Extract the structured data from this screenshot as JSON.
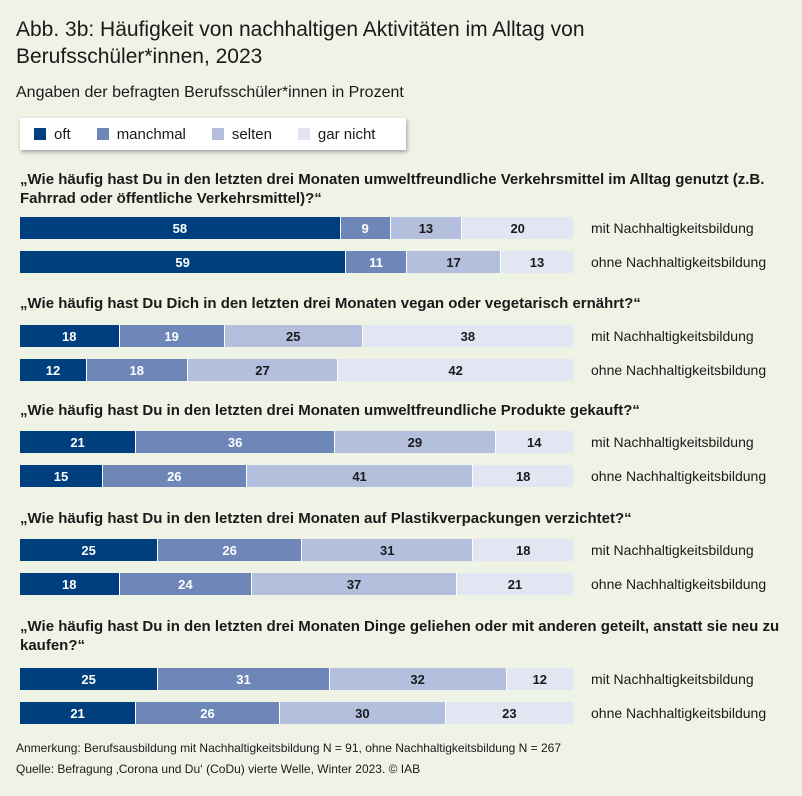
{
  "title": "Abb. 3b: Häufigkeit von nachhaltigen Aktivitäten im Alltag von Berufsschüler*innen, 2023",
  "subtitle": "Angaben der befragten Berufsschüler*innen in Prozent",
  "legend": [
    {
      "label": "oft",
      "key": "oft",
      "color": "#003f7d"
    },
    {
      "label": "manchmal",
      "key": "manchmal",
      "color": "#6f86b9"
    },
    {
      "label": "selten",
      "key": "selten",
      "color": "#b3bfdd"
    },
    {
      "label": "gar nicht",
      "key": "garnicht",
      "color": "#e2e6f2"
    }
  ],
  "chart_data": {
    "type": "bar",
    "orientation": "horizontal",
    "stacked": true,
    "unit": "Prozent",
    "categories_stack": [
      "oft",
      "manchmal",
      "selten",
      "gar nicht"
    ],
    "groups": [
      {
        "question": "„Wie häufig hast Du in den letzten drei Monaten umweltfreundliche Verkehrsmittel im Alltag genutzt (z.B. Fahrrad oder öffentliche Verkehrsmittel)?“",
        "rows": [
          {
            "label": "mit Nachhaltigkeitsbildung",
            "values": [
              58,
              9,
              13,
              20
            ]
          },
          {
            "label": "ohne Nachhaltigkeitsbildung",
            "values": [
              59,
              11,
              17,
              13
            ]
          }
        ]
      },
      {
        "question": "„Wie häufig hast Du Dich in den letzten drei Monaten vegan oder vegetarisch ernährt?“",
        "rows": [
          {
            "label": "mit Nachhaltigkeitsbildung",
            "values": [
              18,
              19,
              25,
              38
            ]
          },
          {
            "label": "ohne Nachhaltigkeitsbildung",
            "values": [
              12,
              18,
              27,
              42
            ]
          }
        ]
      },
      {
        "question": "„Wie häufig hast Du in den letzten drei Monaten umweltfreundliche Produkte gekauft?“",
        "rows": [
          {
            "label": "mit Nachhaltigkeitsbildung",
            "values": [
              21,
              36,
              29,
              14
            ]
          },
          {
            "label": "ohne Nachhaltigkeitsbildung",
            "values": [
              15,
              26,
              41,
              18
            ]
          }
        ]
      },
      {
        "question": "„Wie häufig hast Du in den letzten drei Monaten auf Plastikverpackungen verzichtet?“",
        "rows": [
          {
            "label": "mit Nachhaltigkeitsbildung",
            "values": [
              25,
              26,
              31,
              18
            ]
          },
          {
            "label": "ohne Nachhaltigkeitsbildung",
            "values": [
              18,
              24,
              37,
              21
            ]
          }
        ]
      },
      {
        "question": "„Wie häufig hast Du in den letzten drei Monaten Dinge geliehen oder mit anderen geteilt, anstatt sie neu zu kaufen?“",
        "rows": [
          {
            "label": "mit Nachhaltigkeitsbildung",
            "values": [
              25,
              31,
              32,
              12
            ]
          },
          {
            "label": "ohne Nachhaltigkeitsbildung",
            "values": [
              21,
              26,
              30,
              23
            ]
          }
        ]
      }
    ]
  },
  "footer": {
    "note": "Anmerkung: Berufsausbildung mit Nachhaltigkeitsbildung N = 91, ohne Nachhaltigkeitsbildung N = 267",
    "source": "Quelle: Befragung ‚Corona und Du‘ (CoDu)  vierte Welle, Winter 2023.  © IAB"
  }
}
